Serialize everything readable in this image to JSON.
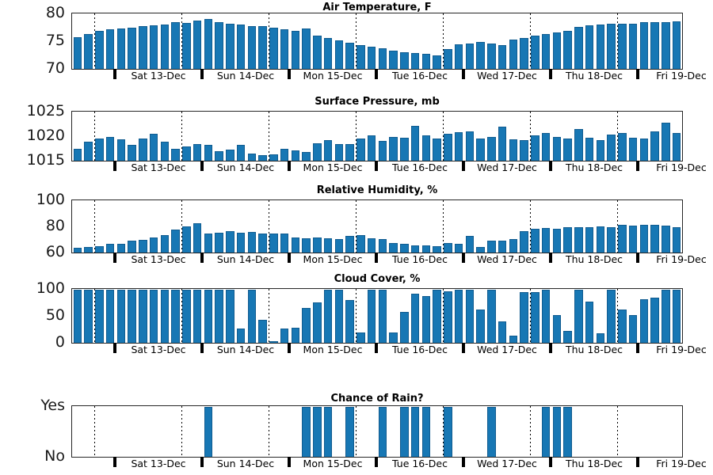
{
  "colors": {
    "bar": "#1777b4",
    "axis": "#262626",
    "background": "#ffffff"
  },
  "x_axis": {
    "n_slots": 56,
    "day_labels": [
      "Sat 13-Dec",
      "Sun 14-Dec",
      "Mon 15-Dec",
      "Tue 16-Dec",
      "Wed 17-Dec",
      "Thu 18-Dec",
      "Fri 19-Dec"
    ],
    "boundary_slots": [
      4,
      12,
      20,
      28,
      36,
      44,
      52
    ],
    "dotted_slots": [
      2,
      10,
      18,
      26,
      34,
      42,
      50
    ]
  },
  "chart_data": [
    {
      "type": "bar",
      "title": "Air Temperature, F",
      "ylim": [
        70,
        80
      ],
      "yticks": [
        {
          "label": "80",
          "value": 80
        },
        {
          "label": "75",
          "value": 75
        },
        {
          "label": "70",
          "value": 70
        }
      ],
      "values": [
        75.8,
        76.4,
        76.9,
        77.2,
        77.4,
        77.6,
        77.9,
        78.0,
        78.1,
        78.6,
        78.4,
        78.9,
        79.1,
        78.5,
        78.3,
        78.1,
        77.8,
        77.8,
        77.5,
        77.2,
        77.0,
        77.4,
        76.1,
        75.6,
        75.2,
        74.8,
        74.3,
        74.0,
        73.7,
        73.4,
        73.1,
        72.9,
        72.7,
        72.5,
        73.6,
        74.5,
        74.7,
        75.0,
        74.7,
        74.3,
        75.4,
        75.7,
        76.1,
        76.4,
        76.6,
        77.0,
        77.7,
        78.0,
        78.1,
        78.2,
        78.3,
        78.3,
        78.5,
        78.6,
        78.6,
        78.7
      ]
    },
    {
      "type": "bar",
      "title": "Surface Pressure, mb",
      "ylim": [
        1015,
        1025
      ],
      "yticks": [
        {
          "label": "1025",
          "value": 1025
        },
        {
          "label": "1020",
          "value": 1020
        },
        {
          "label": "1015",
          "value": 1015
        }
      ],
      "values": [
        1017.4,
        1019.0,
        1019.6,
        1019.9,
        1019.5,
        1018.2,
        1019.6,
        1020.6,
        1018.9,
        1017.5,
        1017.9,
        1018.4,
        1018.2,
        1016.9,
        1017.3,
        1018.2,
        1016.5,
        1016.1,
        1016.3,
        1017.4,
        1017.2,
        1016.8,
        1018.6,
        1019.3,
        1018.5,
        1018.4,
        1019.6,
        1020.2,
        1019.1,
        1020.0,
        1019.8,
        1022.2,
        1020.3,
        1019.6,
        1020.6,
        1020.9,
        1021.1,
        1019.6,
        1020.0,
        1022.0,
        1019.4,
        1019.2,
        1020.3,
        1020.8,
        1020.0,
        1019.6,
        1021.6,
        1019.7,
        1019.3,
        1020.4,
        1020.7,
        1019.8,
        1019.6,
        1021.0,
        1022.8,
        1020.7
      ]
    },
    {
      "type": "bar",
      "title": "Relative Humidity, %",
      "ylim": [
        60,
        100
      ],
      "yticks": [
        {
          "label": "100",
          "value": 100
        },
        {
          "label": "80",
          "value": 80
        },
        {
          "label": "60",
          "value": 60
        }
      ],
      "values": [
        64.0,
        64.5,
        65.0,
        66.5,
        67.0,
        69.5,
        70.0,
        72.0,
        73.5,
        78.0,
        80.5,
        82.5,
        75.0,
        75.5,
        76.5,
        75.5,
        76.0,
        74.5,
        75.0,
        74.5,
        71.5,
        71.0,
        71.5,
        71.0,
        70.5,
        73.0,
        73.5,
        71.0,
        70.5,
        67.5,
        67.0,
        65.5,
        65.5,
        65.0,
        67.5,
        67.0,
        73.0,
        64.5,
        69.5,
        69.0,
        70.5,
        76.5,
        78.5,
        79.0,
        78.5,
        79.5,
        79.5,
        80.0,
        80.5,
        80.0,
        81.5,
        81.0,
        81.5,
        81.5,
        81.0,
        79.5
      ]
    },
    {
      "type": "bar",
      "title": "Cloud Cover, %",
      "ylim": [
        0,
        100
      ],
      "yticks": [
        {
          "label": "100",
          "value": 100
        },
        {
          "label": "50",
          "value": 50
        },
        {
          "label": "0",
          "value": 0
        }
      ],
      "values": [
        100,
        100,
        100,
        100,
        100,
        100,
        100,
        100,
        100,
        100,
        100,
        100,
        100,
        100,
        100,
        27,
        100,
        44,
        3,
        27,
        28,
        66,
        76,
        100,
        100,
        80,
        20,
        100,
        100,
        20,
        58,
        92,
        88,
        100,
        97,
        100,
        100,
        63,
        100,
        41,
        13,
        96,
        96,
        100,
        53,
        22,
        100,
        77,
        18,
        100,
        63,
        53,
        82,
        85,
        100,
        100
      ]
    },
    {
      "type": "bar",
      "title": "Chance of Rain?",
      "ylim": [
        0,
        1
      ],
      "yticks": [
        {
          "label": "Yes",
          "value": 1
        },
        {
          "label": "No",
          "value": 0
        }
      ],
      "values": [
        0,
        0,
        0,
        0,
        0,
        0,
        0,
        0,
        0,
        0,
        0,
        0,
        1,
        0,
        0,
        0,
        0,
        0,
        0,
        0,
        0,
        1,
        1,
        1,
        0,
        1,
        0,
        0,
        1,
        0,
        1,
        1,
        1,
        0,
        1,
        0,
        0,
        0,
        1,
        0,
        0,
        0,
        0,
        1,
        1,
        1,
        0,
        0,
        0,
        0,
        0,
        0,
        0,
        0,
        0,
        0
      ]
    }
  ]
}
